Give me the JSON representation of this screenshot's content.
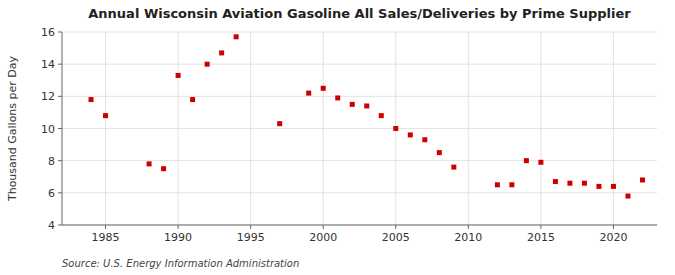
{
  "chart_data": {
    "type": "scatter",
    "title": "Annual Wisconsin Aviation Gasoline All Sales/Deliveries by Prime Supplier",
    "ylabel": "Thousand Gallons per Day",
    "annotations": [
      "Source: U.S. Energy Information Administration"
    ],
    "x": [
      1984,
      1985,
      1988,
      1989,
      1990,
      1991,
      1992,
      1993,
      1994,
      1997,
      1999,
      2000,
      2001,
      2002,
      2003,
      2004,
      2005,
      2006,
      2007,
      2008,
      2009,
      2012,
      2013,
      2014,
      2015,
      2016,
      2017,
      2018,
      2019,
      2020,
      2021,
      2022
    ],
    "values": [
      11.8,
      10.8,
      7.8,
      7.5,
      13.3,
      11.8,
      14.0,
      14.7,
      15.7,
      10.3,
      12.2,
      12.5,
      11.9,
      11.5,
      11.4,
      10.8,
      10.0,
      9.6,
      9.3,
      8.5,
      7.6,
      6.5,
      6.5,
      8.0,
      7.9,
      6.7,
      6.6,
      6.6,
      6.4,
      6.4,
      5.8,
      6.8
    ],
    "color": "#cc0000",
    "marker": "square",
    "xlim": [
      1982,
      2023
    ],
    "ylim": [
      4,
      16
    ],
    "xticks": [
      1985,
      1990,
      1995,
      2000,
      2005,
      2010,
      2015,
      2020
    ],
    "yticks": [
      4,
      6,
      8,
      10,
      12,
      14,
      16
    ],
    "grid": true
  }
}
